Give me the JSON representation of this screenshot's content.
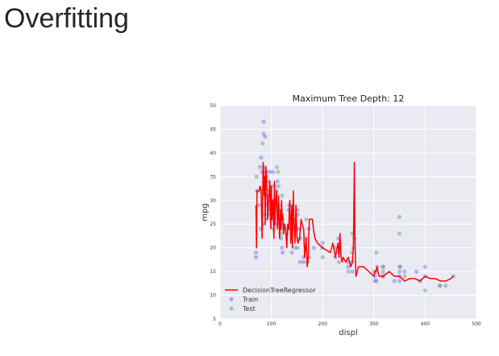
{
  "slide": {
    "title": "Overfitting"
  },
  "chart_data": {
    "type": "scatter",
    "title": "Maximum Tree Depth: 12",
    "xlabel": "displ",
    "ylabel": "mpg",
    "xlim": [
      0,
      500
    ],
    "ylim": [
      5,
      50
    ],
    "xticks": [
      "0",
      "100",
      "200",
      "300",
      "400",
      "500"
    ],
    "yticks": [
      "5",
      "10",
      "15",
      "20",
      "25",
      "30",
      "35",
      "40",
      "45",
      "50"
    ],
    "grid": true,
    "legend_position": "bottom-left",
    "colors": {
      "background": "#EAEAF2",
      "line": "#ff0000",
      "train": "#6a6ae8",
      "test": "#5fa05f"
    },
    "series": [
      {
        "name": "DecisionTreeRegressor",
        "kind": "line",
        "x": [
          70,
          71,
          72,
          73,
          76,
          78,
          80,
          82,
          84,
          85,
          86,
          87,
          88,
          89,
          90,
          91,
          92,
          93,
          95,
          97,
          98,
          99,
          100,
          101,
          103,
          105,
          106,
          107,
          108,
          110,
          112,
          114,
          115,
          116,
          118,
          119,
          120,
          121,
          122,
          124,
          126,
          128,
          130,
          132,
          134,
          135,
          136,
          137,
          138,
          140,
          141,
          142,
          143,
          144,
          146,
          147,
          148,
          150,
          152,
          155,
          158,
          160,
          163,
          165,
          168,
          170,
          172,
          174,
          176,
          178,
          180,
          182,
          185,
          190,
          200,
          215,
          220,
          225,
          230,
          232,
          234,
          236,
          238,
          240,
          245,
          250,
          255,
          258,
          260,
          262,
          263,
          265,
          270,
          280,
          300,
          302,
          304,
          306,
          310,
          318,
          330,
          340,
          350,
          360,
          370,
          380,
          390,
          400,
          410,
          420,
          430,
          440,
          450,
          455
        ],
        "y": [
          29,
          20,
          32,
          32,
          32,
          33,
          32,
          22,
          38,
          36,
          31,
          35,
          25,
          37,
          36,
          33,
          30,
          26,
          31,
          34,
          27,
          24,
          33,
          26,
          30,
          22,
          34,
          25,
          29,
          32,
          24,
          31,
          26,
          22,
          28,
          24,
          30,
          26,
          27,
          23,
          25,
          24,
          20,
          25,
          24,
          28,
          30,
          26,
          21,
          29,
          20,
          26,
          32,
          26,
          21,
          24,
          29,
          22,
          21,
          22,
          26,
          25,
          24,
          18,
          22,
          16,
          18,
          26,
          26,
          26,
          26,
          24,
          22,
          21,
          20,
          19,
          21,
          18,
          21,
          18,
          23,
          18,
          17,
          18,
          17,
          18,
          16,
          17,
          20,
          38,
          22,
          14,
          16,
          16,
          14,
          15,
          15,
          16,
          14,
          14,
          15,
          14,
          14,
          13,
          13.5,
          13.5,
          13,
          14,
          13.5,
          13.5,
          13,
          13,
          13.5,
          14
        ]
      },
      {
        "name": "Train",
        "kind": "scatter",
        "x": [
          70,
          70,
          72,
          75,
          78,
          80,
          80,
          82,
          85,
          85,
          86,
          88,
          88,
          90,
          90,
          90,
          91,
          93,
          95,
          97,
          97,
          98,
          98,
          100,
          100,
          101,
          103,
          105,
          107,
          107,
          110,
          112,
          113,
          115,
          119,
          120,
          120,
          121,
          122,
          122,
          130,
          133,
          134,
          135,
          140,
          140,
          146,
          151,
          151,
          151,
          156,
          156,
          163,
          163,
          168,
          171,
          173,
          183,
          199,
          200,
          225,
          225,
          231,
          232,
          250,
          250,
          258,
          258,
          260,
          262,
          302,
          302,
          304,
          305,
          307,
          318,
          318,
          318,
          340,
          350,
          350,
          350,
          351,
          360,
          383,
          390,
          400,
          400,
          429,
          440,
          455
        ],
        "y": [
          18,
          19,
          32,
          29,
          37,
          39,
          24,
          36,
          44,
          46.6,
          25,
          43.4,
          37,
          36,
          31,
          26,
          29,
          27,
          34,
          32,
          36,
          28,
          30,
          33,
          26,
          27,
          36,
          30,
          33,
          25,
          32,
          34,
          28,
          29,
          22,
          24,
          26,
          20,
          25,
          19,
          23,
          24,
          28,
          29,
          19,
          24,
          26,
          20,
          27,
          24,
          22,
          17,
          17,
          18,
          22,
          17,
          24,
          20,
          20,
          21,
          18,
          20,
          22,
          19,
          16,
          17,
          17,
          15,
          20,
          22,
          14,
          13,
          15,
          13,
          16,
          14,
          15,
          16,
          13,
          13,
          14,
          15,
          16,
          15,
          15,
          13,
          16,
          14,
          12,
          12,
          14
        ]
      },
      {
        "name": "Test",
        "kind": "scatter",
        "x": [
          71,
          79,
          83,
          86,
          89,
          91,
          97,
          98,
          104,
          105,
          111,
          113,
          114,
          116,
          120,
          121,
          122,
          134,
          141,
          146,
          151,
          155,
          156,
          168,
          173,
          200,
          232,
          250,
          258,
          258,
          300,
          305,
          318,
          318,
          350,
          350,
          351,
          360,
          400,
          429
        ],
        "y": [
          35,
          32,
          42,
          27,
          34,
          35,
          31,
          32,
          28,
          24,
          37,
          36,
          33,
          28,
          23,
          31,
          26,
          24,
          27,
          20,
          28,
          22,
          24,
          26,
          18,
          18,
          17,
          15,
          23,
          19,
          15,
          19,
          14,
          16,
          26.5,
          23,
          16,
          14,
          11,
          12
        ]
      }
    ]
  }
}
